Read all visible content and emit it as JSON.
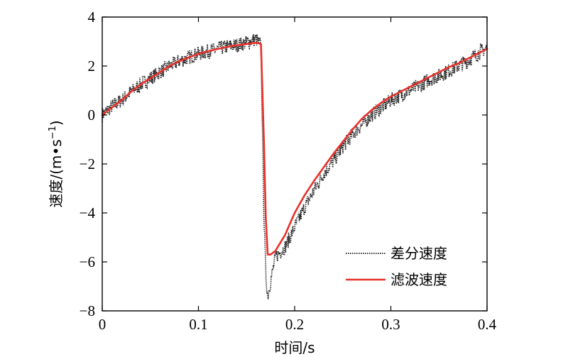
{
  "chart_data": {
    "type": "line",
    "xlabel": "时间/s",
    "ylabel": "速度/(m·s⁻¹)",
    "ylabel_parts": [
      "速度/(m",
      "•",
      "s",
      "−1",
      ")"
    ],
    "xlim": [
      0,
      0.4
    ],
    "ylim": [
      -8,
      4
    ],
    "x_ticks": [
      0,
      0.1,
      0.2,
      0.3,
      0.4
    ],
    "x_tick_labels": [
      "0",
      "0.1",
      "0.2",
      "0.3",
      "0.4"
    ],
    "y_ticks": [
      -8,
      -6,
      -4,
      -2,
      0,
      2,
      4
    ],
    "y_tick_labels": [
      "−8",
      "−6",
      "−4",
      "−2",
      "0",
      "2",
      "4"
    ],
    "grid": false,
    "legend_position": "bottom-right",
    "colors": {
      "difference": "#1a1a1a",
      "filtered": "#e8312a",
      "axis": "#000000"
    },
    "series": [
      {
        "name": "差分速度",
        "style": "dotted",
        "noise_amplitude": 0.3,
        "x": [
          0,
          0.01,
          0.02,
          0.03,
          0.04,
          0.05,
          0.06,
          0.07,
          0.08,
          0.09,
          0.1,
          0.11,
          0.12,
          0.13,
          0.14,
          0.15,
          0.16,
          0.165,
          0.168,
          0.17,
          0.172,
          0.175,
          0.18,
          0.185,
          0.19,
          0.2,
          0.21,
          0.22,
          0.23,
          0.24,
          0.25,
          0.26,
          0.27,
          0.28,
          0.29,
          0.3,
          0.31,
          0.32,
          0.33,
          0.34,
          0.35,
          0.36,
          0.37,
          0.38,
          0.39,
          0.4
        ],
        "y": [
          0.0,
          0.35,
          0.6,
          0.95,
          1.25,
          1.5,
          1.75,
          2.0,
          2.2,
          2.35,
          2.5,
          2.6,
          2.7,
          2.8,
          2.85,
          2.95,
          3.1,
          2.8,
          -4.0,
          -6.5,
          -7.4,
          -6.8,
          -5.8,
          -5.6,
          -5.4,
          -4.6,
          -3.8,
          -3.1,
          -2.4,
          -1.9,
          -1.3,
          -0.8,
          -0.4,
          0.0,
          0.3,
          0.6,
          0.8,
          1.0,
          1.2,
          1.45,
          1.6,
          1.8,
          2.0,
          2.2,
          2.5,
          2.75
        ]
      },
      {
        "name": "滤波速度",
        "style": "solid",
        "x": [
          0,
          0.01,
          0.02,
          0.03,
          0.04,
          0.05,
          0.06,
          0.07,
          0.08,
          0.09,
          0.1,
          0.11,
          0.12,
          0.13,
          0.14,
          0.15,
          0.16,
          0.165,
          0.168,
          0.17,
          0.172,
          0.175,
          0.18,
          0.19,
          0.2,
          0.21,
          0.22,
          0.23,
          0.24,
          0.25,
          0.26,
          0.27,
          0.28,
          0.29,
          0.3,
          0.31,
          0.32,
          0.33,
          0.34,
          0.35,
          0.36,
          0.37,
          0.38,
          0.39,
          0.4
        ],
        "y": [
          0.0,
          0.3,
          0.6,
          0.95,
          1.25,
          1.5,
          1.75,
          2.0,
          2.2,
          2.35,
          2.5,
          2.6,
          2.7,
          2.78,
          2.85,
          2.9,
          2.95,
          2.9,
          -1.0,
          -4.2,
          -5.7,
          -5.7,
          -5.55,
          -4.9,
          -4.0,
          -3.3,
          -2.7,
          -2.15,
          -1.6,
          -1.1,
          -0.6,
          -0.15,
          0.2,
          0.5,
          0.75,
          0.95,
          1.15,
          1.35,
          1.55,
          1.75,
          1.95,
          2.1,
          2.3,
          2.5,
          2.7
        ]
      }
    ]
  }
}
